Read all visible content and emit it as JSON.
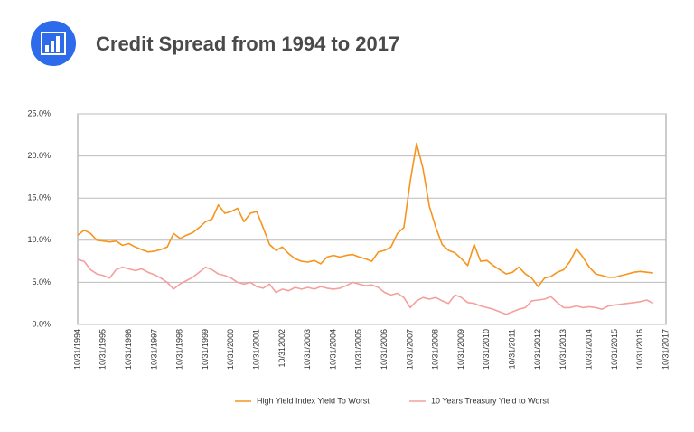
{
  "chart_data": {
    "type": "line",
    "title": "Credit Spread from 1994 to 2017",
    "categories": [
      "10/31/1994",
      null,
      null,
      null,
      "10/31/1995",
      null,
      null,
      null,
      "10/31/1996",
      null,
      null,
      null,
      "10/31/1997",
      null,
      null,
      null,
      "10/31/1998",
      null,
      null,
      null,
      "10/31/1999",
      null,
      null,
      null,
      "10/31/2000",
      null,
      null,
      null,
      "10/31/2001",
      null,
      null,
      null,
      "10/312002",
      null,
      null,
      null,
      "10/31/2003",
      null,
      null,
      null,
      "10/31/2004",
      null,
      null,
      null,
      "10/31/2005",
      null,
      null,
      null,
      "10/31/2006",
      null,
      null,
      null,
      "10/31/2007",
      null,
      null,
      null,
      "10/31/2008",
      null,
      null,
      null,
      "10/31/2009",
      null,
      null,
      null,
      "10/31/2010",
      null,
      null,
      null,
      "10/31/2011",
      null,
      null,
      null,
      "10/31/2012",
      null,
      null,
      null,
      "10/31/2013",
      null,
      null,
      null,
      "10/31/2014",
      null,
      null,
      null,
      "10/31/2015",
      null,
      null,
      null,
      "10/31/2016",
      null,
      null,
      null,
      "10/31/2017"
    ],
    "series": [
      {
        "name": "High Yield Index Yield To Worst",
        "color": "#f7941d",
        "values": [
          10.6,
          11.2,
          10.8,
          10.0,
          9.9,
          9.8,
          9.9,
          9.4,
          9.6,
          9.2,
          8.9,
          8.6,
          8.7,
          8.9,
          9.2,
          10.8,
          10.2,
          10.6,
          10.9,
          11.5,
          12.2,
          12.5,
          14.2,
          13.2,
          13.4,
          13.8,
          12.2,
          13.2,
          13.4,
          11.5,
          9.5,
          8.8,
          9.2,
          8.4,
          7.8,
          7.5,
          7.4,
          7.6,
          7.2,
          8.0,
          8.2,
          8.0,
          8.2,
          8.3,
          8.0,
          7.8,
          7.5,
          8.6,
          8.8,
          9.2,
          10.8,
          11.5,
          17.0,
          21.5,
          18.5,
          14.0,
          11.5,
          9.5,
          8.8,
          8.5,
          7.8,
          7.0,
          9.5,
          7.5,
          7.6,
          7.0,
          6.5,
          6.0,
          6.2,
          6.8,
          6.0,
          5.5,
          4.5,
          5.5,
          5.7,
          6.2,
          6.5,
          7.5,
          9.0,
          8.0,
          6.8,
          6.0,
          5.8,
          5.6,
          5.6,
          5.8,
          6.0,
          6.2,
          6.3,
          6.2,
          6.1,
          null,
          null
        ]
      },
      {
        "name": "10 Years Treasury Yield to Worst",
        "color": "#f4a09c",
        "values": [
          7.7,
          7.5,
          6.5,
          6.0,
          5.8,
          5.5,
          6.5,
          6.8,
          6.6,
          6.4,
          6.6,
          6.2,
          5.9,
          5.5,
          5.0,
          4.2,
          4.8,
          5.2,
          5.6,
          6.2,
          6.8,
          6.5,
          6.0,
          5.8,
          5.5,
          5.0,
          4.8,
          5.0,
          4.5,
          4.3,
          4.8,
          3.8,
          4.2,
          4.0,
          4.4,
          4.2,
          4.4,
          4.2,
          4.5,
          4.3,
          4.2,
          4.3,
          4.6,
          5.0,
          4.8,
          4.6,
          4.7,
          4.4,
          3.8,
          3.5,
          3.7,
          3.2,
          2.0,
          2.8,
          3.2,
          3.0,
          3.2,
          2.8,
          2.5,
          3.5,
          3.2,
          2.6,
          2.5,
          2.2,
          2.0,
          1.8,
          1.5,
          1.2,
          1.5,
          1.8,
          2.0,
          2.8,
          2.9,
          3.0,
          3.3,
          2.6,
          2.0,
          2.0,
          2.2,
          2.0,
          2.1,
          2.0,
          1.8,
          2.2,
          2.3,
          2.4,
          2.5,
          2.6,
          2.7,
          2.9,
          2.5,
          null,
          null
        ]
      }
    ],
    "ylim": [
      0,
      25
    ],
    "yticks": [
      {
        "value": 0,
        "label": "0.0%"
      },
      {
        "value": 5,
        "label": "5.0%"
      },
      {
        "value": 10,
        "label": "10.0%"
      },
      {
        "value": 15,
        "label": "15.0%"
      },
      {
        "value": 20,
        "label": "20.0%"
      },
      {
        "value": 25,
        "label": "25.0%"
      }
    ],
    "grid": true,
    "legend": "bottom"
  }
}
